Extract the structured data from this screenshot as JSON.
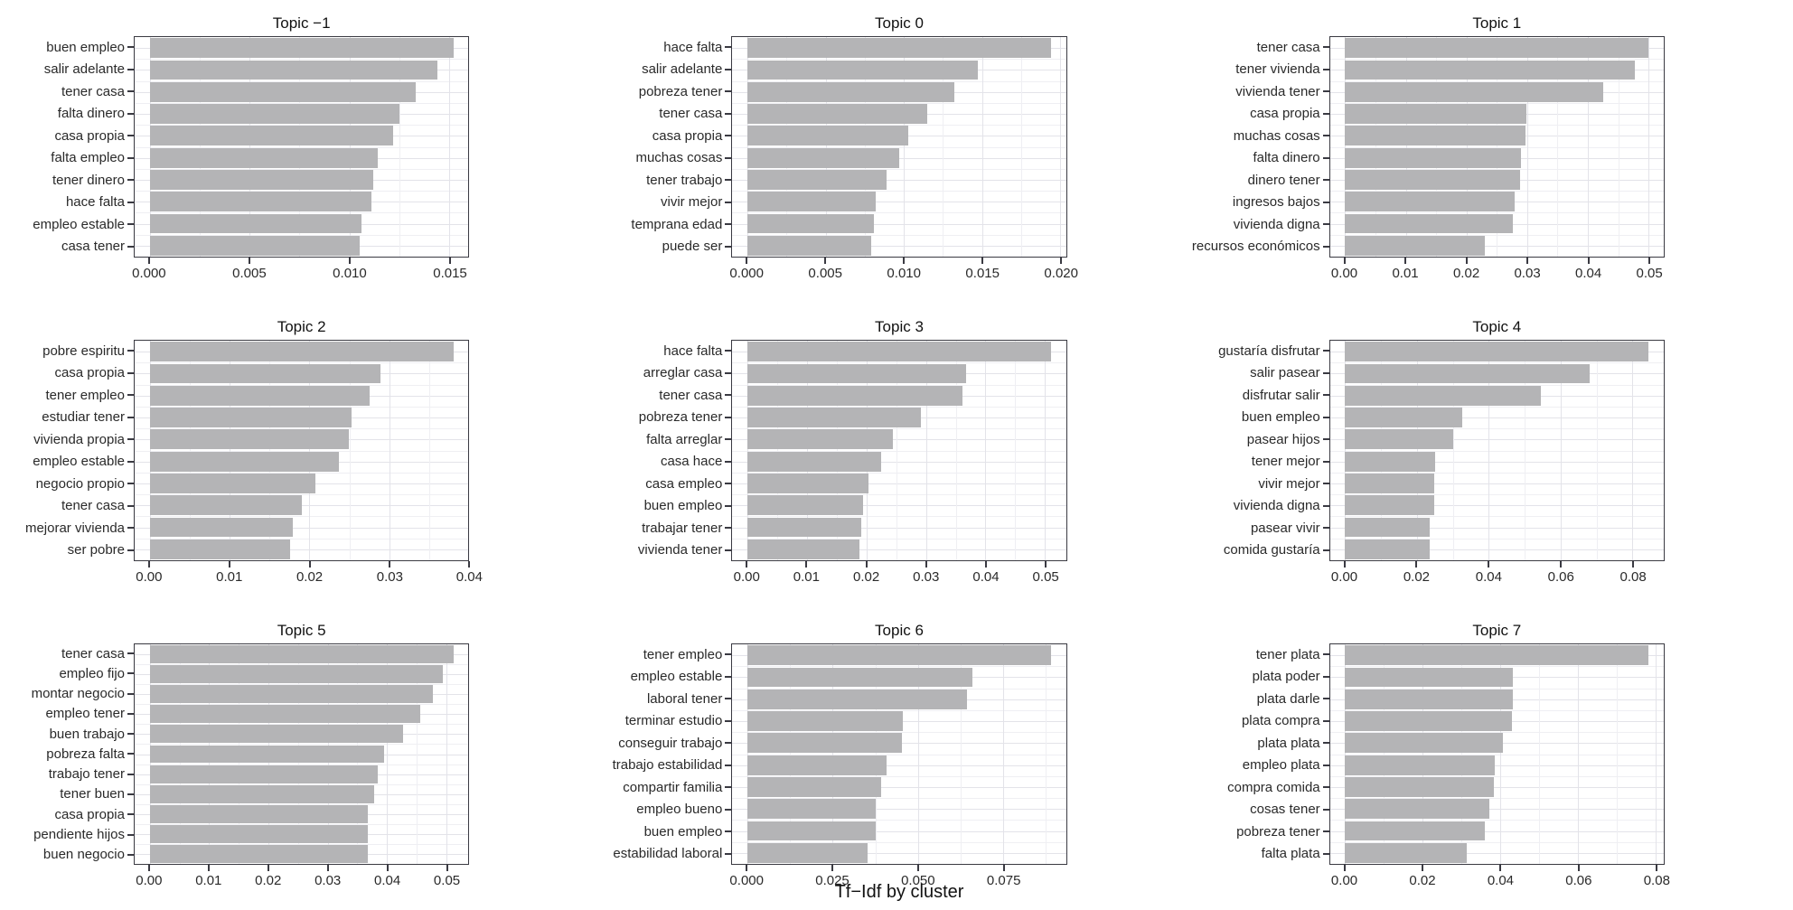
{
  "figure": {
    "x_axis_title": "Tf−Idf by cluster",
    "colors": {
      "bar": "#b4b4b6",
      "panel_border": "#3a3a42",
      "tick_mark": "#3a3a42",
      "grid_major": "#e3e3e9",
      "grid_minor": "#efeff3",
      "axis_text": "#2a2a2a",
      "title_text": "#111111",
      "background": "#ffffff"
    }
  },
  "chart_data": [
    {
      "type": "bar",
      "orientation": "horizontal",
      "title": "Topic −1",
      "categories": [
        "buen empleo",
        "salir adelante",
        "tener casa",
        "falta dinero",
        "casa propia",
        "falta empleo",
        "tener dinero",
        "hace falta",
        "empleo estable",
        "casa tener"
      ],
      "values": [
        0.0152,
        0.0144,
        0.0133,
        0.0125,
        0.0122,
        0.0114,
        0.0112,
        0.0111,
        0.0106,
        0.0105
      ],
      "ticks": {
        "values": [
          0,
          0.005,
          0.01,
          0.015
        ],
        "labels": [
          "0.000",
          "0.005",
          "0.010",
          "0.015"
        ]
      },
      "xlabel": "",
      "ylabel": "",
      "grid": true
    },
    {
      "type": "bar",
      "orientation": "horizontal",
      "title": "Topic 0",
      "categories": [
        "hace falta",
        "salir adelante",
        "pobreza tener",
        "tener casa",
        "casa propia",
        "muchas cosas",
        "tener trabajo",
        "vivir mejor",
        "temprana edad",
        "puede ser"
      ],
      "values": [
        0.0194,
        0.0147,
        0.0132,
        0.0115,
        0.0103,
        0.0097,
        0.0089,
        0.0082,
        0.0081,
        0.0079
      ],
      "ticks": {
        "values": [
          0,
          0.005,
          0.01,
          0.015,
          0.02
        ],
        "labels": [
          "0.000",
          "0.005",
          "0.010",
          "0.015",
          "0.020"
        ]
      },
      "xlabel": "",
      "ylabel": "",
      "grid": true
    },
    {
      "type": "bar",
      "orientation": "horizontal",
      "title": "Topic 1",
      "categories": [
        "tener casa",
        "tener vivienda",
        "vivienda tener",
        "casa propia",
        "muchas cosas",
        "falta dinero",
        "dinero tener",
        "ingresos bajos",
        "vivienda digna",
        "recursos económicos"
      ],
      "values": [
        0.05,
        0.0478,
        0.0425,
        0.0299,
        0.0297,
        0.029,
        0.0288,
        0.0279,
        0.0276,
        0.023
      ],
      "ticks": {
        "values": [
          0,
          0.01,
          0.02,
          0.03,
          0.04,
          0.05
        ],
        "labels": [
          "0.00",
          "0.01",
          "0.02",
          "0.03",
          "0.04",
          "0.05"
        ]
      },
      "xlabel": "",
      "ylabel": "",
      "grid": true
    },
    {
      "type": "bar",
      "orientation": "horizontal",
      "title": "Topic 2",
      "categories": [
        "pobre espiritu",
        "casa propia",
        "tener empleo",
        "estudiar tener",
        "vivienda propia",
        "empleo estable",
        "negocio propio",
        "tener casa",
        "mejorar vivienda",
        "ser pobre"
      ],
      "values": [
        0.038,
        0.0289,
        0.0275,
        0.0253,
        0.0249,
        0.0237,
        0.0207,
        0.019,
        0.0179,
        0.0176
      ],
      "ticks": {
        "values": [
          0,
          0.01,
          0.02,
          0.03,
          0.04
        ],
        "labels": [
          "0.00",
          "0.01",
          "0.02",
          "0.03",
          "0.04"
        ]
      },
      "xlabel": "",
      "ylabel": "",
      "grid": true
    },
    {
      "type": "bar",
      "orientation": "horizontal",
      "title": "Topic 3",
      "categories": [
        "hace falta",
        "arreglar casa",
        "tener casa",
        "pobreza tener",
        "falta arreglar",
        "casa hace",
        "casa empleo",
        "buen empleo",
        "trabajar tener",
        "vivienda tener"
      ],
      "values": [
        0.051,
        0.0368,
        0.0362,
        0.0292,
        0.0245,
        0.0225,
        0.0203,
        0.0194,
        0.0191,
        0.0188
      ],
      "ticks": {
        "values": [
          0,
          0.01,
          0.02,
          0.03,
          0.04,
          0.05
        ],
        "labels": [
          "0.00",
          "0.01",
          "0.02",
          "0.03",
          "0.04",
          "0.05"
        ]
      },
      "xlabel": "",
      "ylabel": "",
      "grid": true
    },
    {
      "type": "bar",
      "orientation": "horizontal",
      "title": "Topic 4",
      "categories": [
        "gustaría disfrutar",
        "salir pasear",
        "disfrutar salir",
        "buen empleo",
        "pasear hijos",
        "tener mejor",
        "vivir mejor",
        "vivienda digna",
        "pasear vivir",
        "comida gustaría"
      ],
      "values": [
        0.0845,
        0.0681,
        0.0545,
        0.0326,
        0.0302,
        0.025,
        0.0248,
        0.0247,
        0.0236,
        0.0235
      ],
      "ticks": {
        "values": [
          0,
          0.02,
          0.04,
          0.06,
          0.08
        ],
        "labels": [
          "0.00",
          "0.02",
          "0.04",
          "0.06",
          "0.08"
        ]
      },
      "xlabel": "",
      "ylabel": "",
      "grid": true
    },
    {
      "type": "bar",
      "orientation": "horizontal",
      "title": "Topic 5",
      "categories": [
        "tener casa",
        "empleo fijo",
        "montar negocio",
        "empleo tener",
        "buen trabajo",
        "pobreza falta",
        "trabajo tener",
        "tener buen",
        "casa propia",
        "pendiente hijos",
        "buen negocio"
      ],
      "values": [
        0.0512,
        0.0495,
        0.0477,
        0.0456,
        0.0427,
        0.0395,
        0.0385,
        0.0379,
        0.0368,
        0.0368,
        0.0368
      ],
      "ticks": {
        "values": [
          0,
          0.01,
          0.02,
          0.03,
          0.04,
          0.05
        ],
        "labels": [
          "0.00",
          "0.01",
          "0.02",
          "0.03",
          "0.04",
          "0.05"
        ]
      },
      "xlabel": "",
      "ylabel": "",
      "grid": true
    },
    {
      "type": "bar",
      "orientation": "horizontal",
      "title": "Topic 6",
      "categories": [
        "tener empleo",
        "empleo estable",
        "laboral tener",
        "terminar estudio",
        "conseguir trabajo",
        "trabajo estabilidad",
        "compartir familia",
        "empleo bueno",
        "buen empleo",
        "estabilidad laboral"
      ],
      "values": [
        0.089,
        0.066,
        0.0645,
        0.0455,
        0.0454,
        0.0408,
        0.0392,
        0.0376,
        0.0375,
        0.0352
      ],
      "ticks": {
        "values": [
          0,
          0.025,
          0.05,
          0.075
        ],
        "labels": [
          "0.000",
          "0.025",
          "0.050",
          "0.075"
        ]
      },
      "xlabel": "",
      "ylabel": "",
      "grid": true
    },
    {
      "type": "bar",
      "orientation": "horizontal",
      "title": "Topic 7",
      "categories": [
        "tener plata",
        "plata poder",
        "plata darle",
        "plata compra",
        "plata plata",
        "empleo plata",
        "compra comida",
        "cosas tener",
        "pobreza tener",
        "falta plata"
      ],
      "values": [
        0.0781,
        0.0432,
        0.0431,
        0.043,
        0.0405,
        0.0384,
        0.0383,
        0.037,
        0.036,
        0.0314
      ],
      "ticks": {
        "values": [
          0,
          0.02,
          0.04,
          0.06,
          0.08
        ],
        "labels": [
          "0.00",
          "0.02",
          "0.04",
          "0.06",
          "0.08"
        ]
      },
      "xlabel": "",
      "ylabel": "",
      "grid": true
    }
  ]
}
